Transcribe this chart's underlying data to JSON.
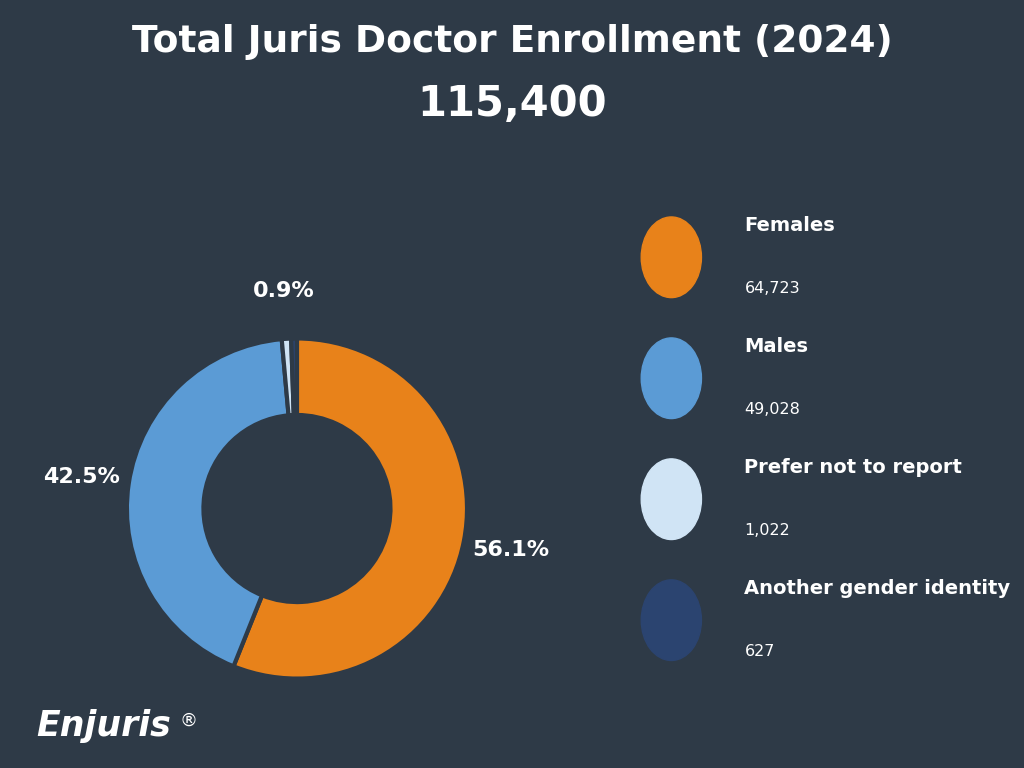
{
  "title_line1": "Total Juris Doctor Enrollment (2024)",
  "title_line2": "115,400",
  "background_color": "#2e3a47",
  "text_color": "#ffffff",
  "categories": [
    "Females",
    "Males",
    "Prefer not to report",
    "Another gender identity"
  ],
  "values": [
    64723,
    49028,
    1022,
    627
  ],
  "counts": [
    "64,723",
    "49,028",
    "1,022",
    "627"
  ],
  "percentages": [
    "56.1%",
    "42.5%",
    "0.9%"
  ],
  "colors": [
    "#e8821a",
    "#5b9bd5",
    "#d0e4f5",
    "#2b4470"
  ],
  "enjuris_registered": "®"
}
